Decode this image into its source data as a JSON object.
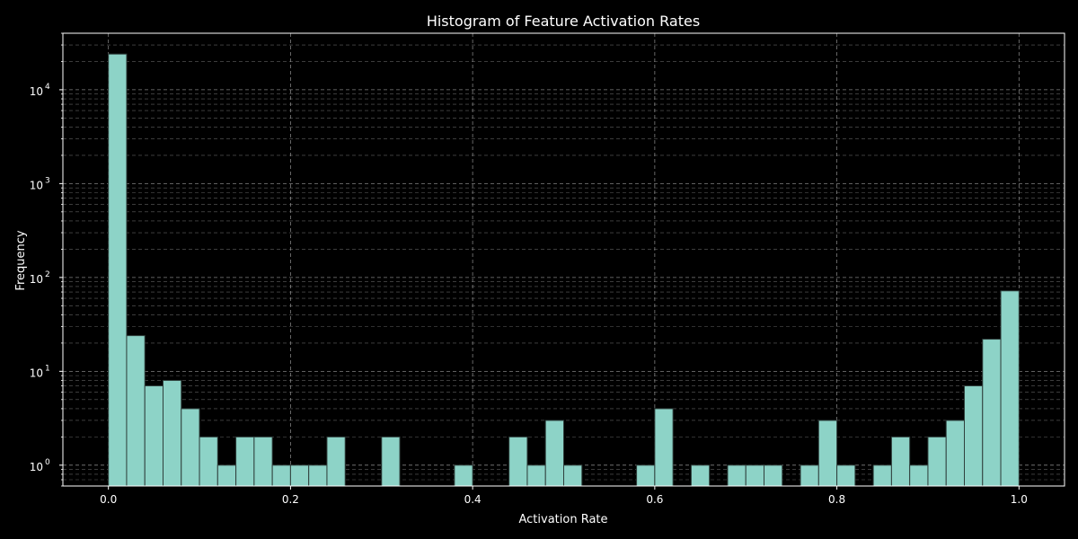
{
  "chart_data": {
    "type": "bar",
    "title": "Histogram of Feature Activation Rates",
    "xlabel": "Activation Rate",
    "ylabel": "Frequency",
    "x_scale": "linear",
    "y_scale": "log",
    "xlim": [
      -0.05,
      1.05
    ],
    "ylim": [
      0.6,
      40000
    ],
    "bin_width": 0.02,
    "x_ticks": [
      {
        "value": 0.0,
        "label": "0.0"
      },
      {
        "value": 0.2,
        "label": "0.2"
      },
      {
        "value": 0.4,
        "label": "0.4"
      },
      {
        "value": 0.6,
        "label": "0.6"
      },
      {
        "value": 0.8,
        "label": "0.8"
      },
      {
        "value": 1.0,
        "label": "1.0"
      }
    ],
    "y_ticks": [
      {
        "value": 1,
        "label": "10",
        "exp": "0"
      },
      {
        "value": 10,
        "label": "10",
        "exp": "1"
      },
      {
        "value": 100,
        "label": "10",
        "exp": "2"
      },
      {
        "value": 1000,
        "label": "10",
        "exp": "3"
      },
      {
        "value": 10000,
        "label": "10",
        "exp": "4"
      }
    ],
    "grid": true,
    "colors": {
      "bar": "#8dd3c7",
      "bar_edge": "#2f3f3c",
      "background": "#000000",
      "grid": "#a0a0a0",
      "text": "#ffffff"
    },
    "bins": [
      {
        "x0": 0.0,
        "count": 24000
      },
      {
        "x0": 0.02,
        "count": 24
      },
      {
        "x0": 0.04,
        "count": 7
      },
      {
        "x0": 0.06,
        "count": 8
      },
      {
        "x0": 0.08,
        "count": 4
      },
      {
        "x0": 0.1,
        "count": 2
      },
      {
        "x0": 0.12,
        "count": 1
      },
      {
        "x0": 0.14,
        "count": 2
      },
      {
        "x0": 0.16,
        "count": 2
      },
      {
        "x0": 0.18,
        "count": 1
      },
      {
        "x0": 0.2,
        "count": 1
      },
      {
        "x0": 0.22,
        "count": 1
      },
      {
        "x0": 0.24,
        "count": 2
      },
      {
        "x0": 0.3,
        "count": 2
      },
      {
        "x0": 0.38,
        "count": 1
      },
      {
        "x0": 0.44,
        "count": 2
      },
      {
        "x0": 0.46,
        "count": 1
      },
      {
        "x0": 0.48,
        "count": 3
      },
      {
        "x0": 0.5,
        "count": 1
      },
      {
        "x0": 0.58,
        "count": 1
      },
      {
        "x0": 0.6,
        "count": 4
      },
      {
        "x0": 0.64,
        "count": 1
      },
      {
        "x0": 0.68,
        "count": 1
      },
      {
        "x0": 0.7,
        "count": 1
      },
      {
        "x0": 0.72,
        "count": 1
      },
      {
        "x0": 0.76,
        "count": 1
      },
      {
        "x0": 0.78,
        "count": 3
      },
      {
        "x0": 0.8,
        "count": 1
      },
      {
        "x0": 0.84,
        "count": 1
      },
      {
        "x0": 0.86,
        "count": 2
      },
      {
        "x0": 0.88,
        "count": 1
      },
      {
        "x0": 0.9,
        "count": 2
      },
      {
        "x0": 0.92,
        "count": 3
      },
      {
        "x0": 0.94,
        "count": 7
      },
      {
        "x0": 0.96,
        "count": 22
      },
      {
        "x0": 0.98,
        "count": 72
      }
    ]
  }
}
